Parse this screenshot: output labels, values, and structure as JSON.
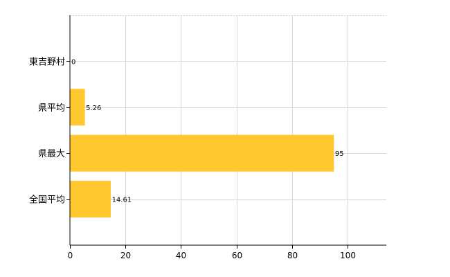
{
  "chart_data": {
    "type": "bar",
    "orientation": "horizontal",
    "categories": [
      "東吉野村",
      "県平均",
      "県最大",
      "全国平均"
    ],
    "values": [
      0,
      5.26,
      95,
      14.61
    ],
    "value_labels": [
      "0",
      "5.26",
      "95",
      "14.61"
    ],
    "xlim": [
      0,
      114
    ],
    "xticks": [
      0,
      20,
      40,
      60,
      80,
      100
    ],
    "xtick_labels": [
      "0",
      "20",
      "40",
      "60",
      "80",
      "100"
    ],
    "grid": true,
    "bar_color": "#FFC82E",
    "title": "",
    "xlabel": "",
    "ylabel": ""
  }
}
